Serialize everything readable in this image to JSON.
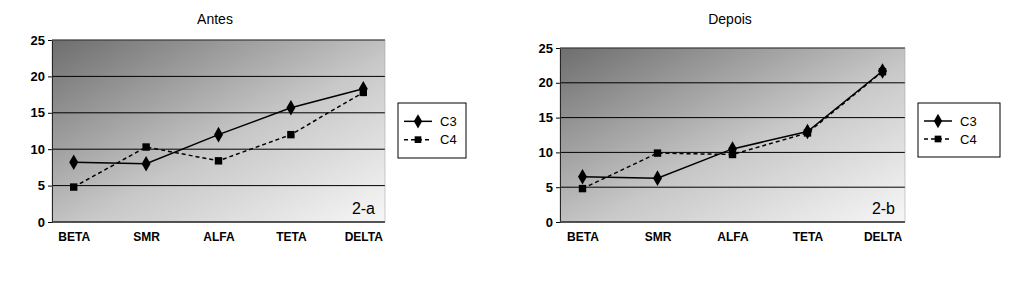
{
  "chart_data": [
    {
      "type": "line",
      "title": "Antes",
      "categories": [
        "BETA",
        "SMR",
        "ALFA",
        "TETA",
        "DELTA"
      ],
      "series": [
        {
          "name": "C3",
          "color": "#000000",
          "marker": "diamond",
          "line_style": "solid",
          "values": [
            8.2,
            8.0,
            12.0,
            15.7,
            18.3
          ]
        },
        {
          "name": "C4",
          "color": "#000000",
          "marker": "square",
          "line_style": "dashed",
          "values": [
            4.8,
            10.3,
            8.4,
            12.0,
            17.8
          ]
        }
      ],
      "ylim": [
        0,
        25
      ],
      "yticks": [
        0,
        5,
        10,
        15,
        20,
        25
      ],
      "grid": true,
      "legend": "right",
      "annotation": "2-a"
    },
    {
      "type": "line",
      "title": "Depois",
      "categories": [
        "BETA",
        "SMR",
        "ALFA",
        "TETA",
        "DELTA"
      ],
      "series": [
        {
          "name": "C3",
          "color": "#000000",
          "marker": "diamond",
          "line_style": "solid",
          "values": [
            6.5,
            6.3,
            10.5,
            13.0,
            21.7
          ]
        },
        {
          "name": "C4",
          "color": "#000000",
          "marker": "square",
          "line_style": "dashed",
          "values": [
            4.8,
            9.9,
            9.7,
            12.8,
            21.6
          ]
        }
      ],
      "ylim": [
        0,
        25
      ],
      "yticks": [
        0,
        5,
        10,
        15,
        20,
        25
      ],
      "grid": true,
      "legend": "right",
      "annotation": "2-b"
    }
  ]
}
